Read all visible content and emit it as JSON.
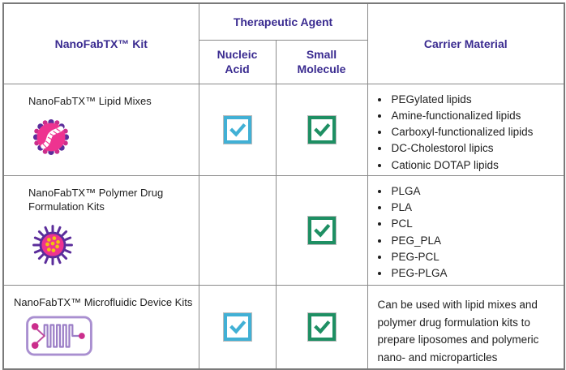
{
  "colors": {
    "header_text": "#3a2b90",
    "grid_border": "#8a8a8a",
    "cyan_check": "#41b0d5",
    "green_check": "#1e8f63",
    "icon_pink": "#ee3390",
    "icon_purple": "#5b2d9b",
    "icon_lavender": "#a98fd0",
    "icon_magenta": "#cb2e8c",
    "icon_yellow": "#f2c40e"
  },
  "header": {
    "kit_column": "NanoFabTX™ Kit",
    "therapeutic_agent": "Therapeutic Agent",
    "nucleic_acid": "Nucleic Acid",
    "small_molecule": "Small Molecule",
    "carrier_material": "Carrier Material"
  },
  "rows": [
    {
      "kit": "NanoFabTX™ Lipid Mixes",
      "icon": "lipid-nanoparticle-icon",
      "nucleic_acid_check": true,
      "small_molecule_check": true,
      "carrier_materials": [
        "PEGylated lipids",
        "Amine-functionalized lipids",
        "Carboxyl-functionalized lipids",
        "DC-Cholestorol lipics",
        "Cationic DOTAP lipids"
      ]
    },
    {
      "kit": "NanoFabTX™ Polymer Drug Formulation Kits",
      "icon": "polymer-nanoparticle-icon",
      "nucleic_acid_check": false,
      "small_molecule_check": true,
      "carrier_materials": [
        "PLGA",
        "PLA",
        "PCL",
        "PEG_PLA",
        "PEG-PCL",
        "PEG-PLGA"
      ]
    },
    {
      "kit": "NanoFabTX™ Microfluidic Device Kits",
      "icon": "microfluidic-chip-icon",
      "nucleic_acid_check": true,
      "small_molecule_check": true,
      "carrier_note": "Can be used with lipid mixes and polymer drug formulation kits to prepare liposomes and polymeric nano- and microparticles"
    }
  ]
}
